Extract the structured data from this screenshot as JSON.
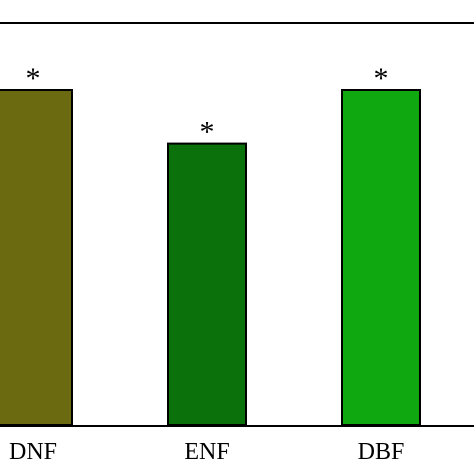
{
  "chart_data": {
    "type": "bar",
    "categories": [
      "DNF",
      "ENF",
      "DBF"
    ],
    "values": [
      1.0,
      0.84,
      1.0
    ],
    "annotations": [
      "*",
      "*",
      "*"
    ],
    "colors": [
      "#6b6a10",
      "#0b710b",
      "#10a810"
    ],
    "ylim": [
      0,
      1.2
    ],
    "grid": false,
    "legend": "none"
  }
}
